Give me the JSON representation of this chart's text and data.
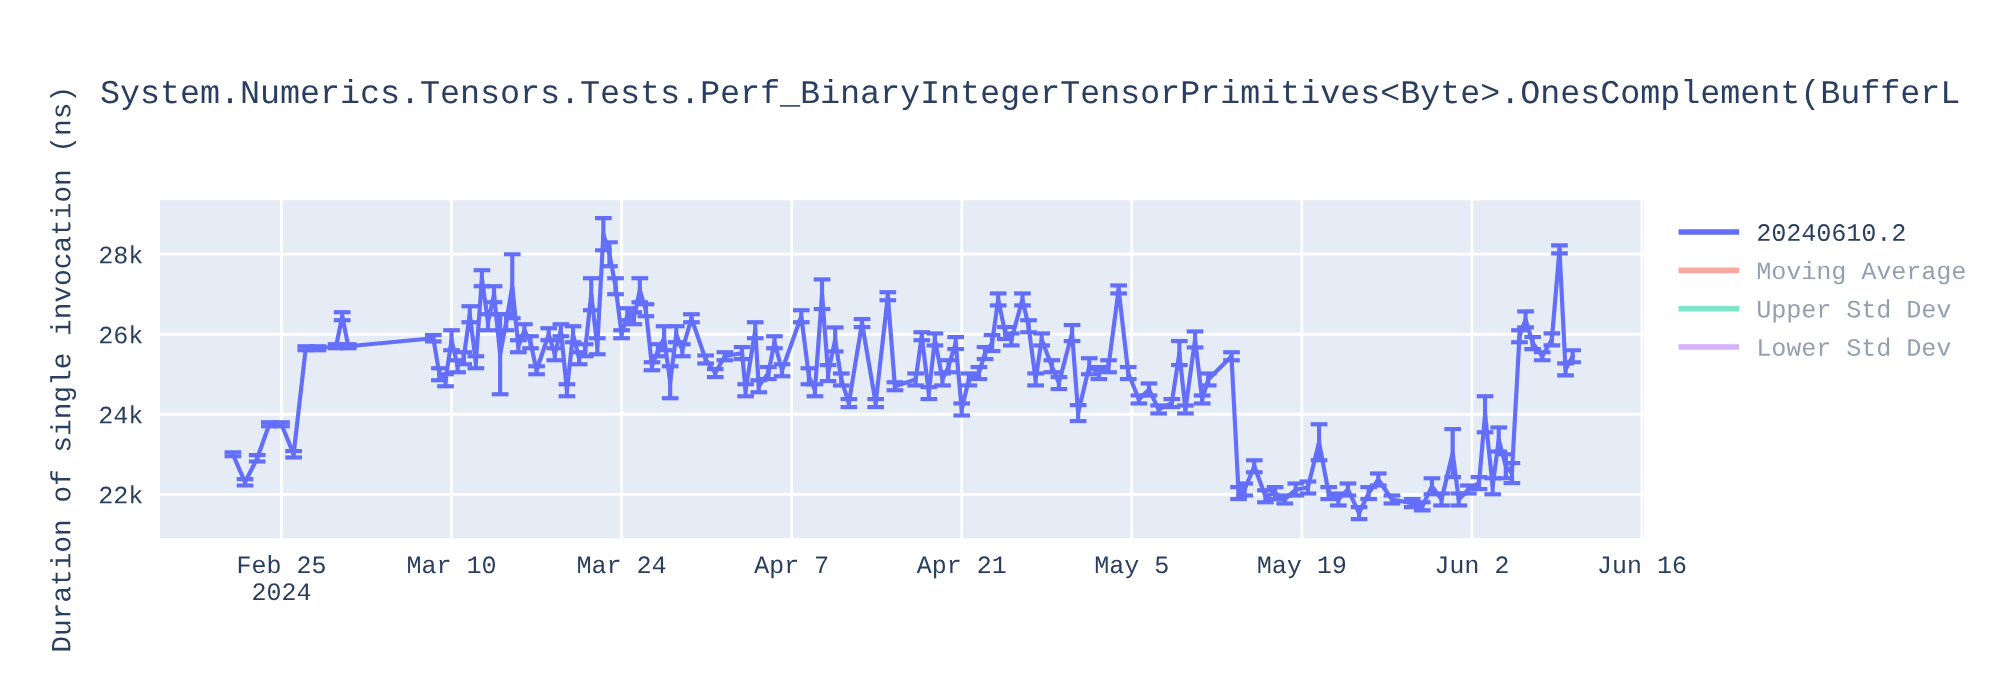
{
  "chart_data": {
    "type": "line",
    "title": "System.Numerics.Tensors.Tests.Perf_BinaryIntegerTensorPrimitives<Byte>.OnesComplement(BufferL",
    "ylabel": "Duration of single invocation (ns)",
    "x": [
      "2024-02-21",
      "2024-02-22",
      "2024-02-23",
      "2024-02-24",
      "2024-02-25",
      "2024-02-26",
      "2024-02-27",
      "2024-02-28",
      "2024-02-29T12:00",
      "2024-03-01",
      "2024-03-01T12:00",
      "2024-03-08T12:00",
      "2024-03-09",
      "2024-03-09T12:00",
      "2024-03-10",
      "2024-03-10T12:00",
      "2024-03-11",
      "2024-03-11T12:00",
      "2024-03-12",
      "2024-03-12T12:00",
      "2024-03-13",
      "2024-03-13T12:00",
      "2024-03-14",
      "2024-03-14T12:00",
      "2024-03-15",
      "2024-03-15T12:00",
      "2024-03-16",
      "2024-03-16T12:00",
      "2024-03-17",
      "2024-03-18",
      "2024-03-18T12:00",
      "2024-03-19",
      "2024-03-19T12:00",
      "2024-03-20",
      "2024-03-20T12:00",
      "2024-03-21",
      "2024-03-21T12:00",
      "2024-03-22",
      "2024-03-22T12:00",
      "2024-03-23",
      "2024-03-23T12:00",
      "2024-03-24",
      "2024-03-24T12:00",
      "2024-03-25",
      "2024-03-25T12:00",
      "2024-03-26",
      "2024-03-26T12:00",
      "2024-03-27",
      "2024-03-27T12:00",
      "2024-03-28",
      "2024-03-28T12:00",
      "2024-03-29",
      "2024-03-29T18:00",
      "2024-03-30T22:00",
      "2024-03-31T17:00",
      "2024-04-01T12:00",
      "2024-04-02T22:00",
      "2024-04-03T05:00",
      "2024-04-04",
      "2024-04-04T07:00",
      "2024-04-05T02:00",
      "2024-04-05T14:00",
      "2024-04-06T05:00",
      "2024-04-07T19:00",
      "2024-04-08T10:00",
      "2024-04-08T22:00",
      "2024-04-09T12:00",
      "2024-04-10",
      "2024-04-10T14:00",
      "2024-04-11T02:00",
      "2024-04-11T17:00",
      "2024-04-12T19:00",
      "2024-04-13T22:00",
      "2024-04-14T22:00",
      "2024-04-15T12:00",
      "2024-04-17T05:00",
      "2024-04-17T17:00",
      "2024-04-18T07:00",
      "2024-04-18T19:00",
      "2024-04-19T10:00",
      "2024-04-19T22:00",
      "2024-04-20T12:00",
      "2024-04-21",
      "2024-04-21T14:00",
      "2024-04-22T10:00",
      "2024-04-22T22:00",
      "2024-04-23T12:00",
      "2024-04-24",
      "2024-04-24T14:00",
      "2024-04-25T02:00",
      "2024-04-26",
      "2024-04-26T12:00",
      "2024-04-27T02:00",
      "2024-04-27T14:00",
      "2024-04-28T10:00",
      "2024-04-29",
      "2024-04-30T02:00",
      "2024-04-30T14:00",
      "2024-05-01T12:00",
      "2024-05-02T07:00",
      "2024-05-03T02:00",
      "2024-05-03T22:00",
      "2024-05-04T17:00",
      "2024-05-05T14:00",
      "2024-05-06T10:00",
      "2024-05-07T05:00",
      "2024-05-08T07:00",
      "2024-05-08T22:00",
      "2024-05-09T10:00",
      "2024-05-10T05:00",
      "2024-05-10T19:00",
      "2024-05-11T07:00",
      "2024-05-13T05:00",
      "2024-05-13T19:00",
      "2024-05-14T07:00",
      "2024-05-15T02:00",
      "2024-05-16",
      "2024-05-16T19:00",
      "2024-05-17T14:00",
      "2024-05-18T12:00",
      "2024-05-19T12:00",
      "2024-05-20T10:00",
      "2024-05-21T05:00",
      "2024-05-22",
      "2024-05-22T19:00",
      "2024-05-23T17:00",
      "2024-05-24T12:00",
      "2024-05-25T07:00",
      "2024-05-26T10:00",
      "2024-05-28T02:00",
      "2024-05-28T22:00",
      "2024-05-29T17:00",
      "2024-05-30T12:00",
      "2024-05-31T10:00",
      "2024-05-31T22:00",
      "2024-06-01T17:00",
      "2024-06-02T14:00",
      "2024-06-03T02:00",
      "2024-06-03T17:00",
      "2024-06-04T05:00",
      "2024-06-04T19:00",
      "2024-06-05T07:00",
      "2024-06-05T22:00",
      "2024-06-06T10:00",
      "2024-06-07",
      "2024-06-07T19:00",
      "2024-06-08T14:00",
      "2024-06-09T05:00",
      "2024-06-09T17:00",
      "2024-06-10T07:00"
    ],
    "series": [
      {
        "name": "20240610.2",
        "color": "#636efa",
        "values": [
          23000,
          22300,
          22900,
          23750,
          23750,
          23000,
          25650,
          25650,
          25700,
          26450,
          25700,
          25900,
          25000,
          24850,
          25850,
          25200,
          25400,
          26500,
          25300,
          27400,
          26300,
          27000,
          25500,
          26300,
          27200,
          25700,
          26100,
          25800,
          25100,
          26000,
          25500,
          26100,
          24600,
          26000,
          25400,
          25600,
          27000,
          25700,
          28500,
          28000,
          27200,
          26000,
          26500,
          26400,
          27100,
          26600,
          25200,
          25600,
          25900,
          24800,
          26000,
          25600,
          26400,
          25370,
          25030,
          25450,
          25530,
          24600,
          26100,
          24700,
          25030,
          25800,
          25100,
          26450,
          24950,
          24600,
          27000,
          25030,
          25870,
          24870,
          24280,
          26280,
          24280,
          26950,
          24700,
          24870,
          25950,
          24530,
          25870,
          24870,
          25200,
          25780,
          24120,
          24870,
          25030,
          25530,
          25780,
          26870,
          26030,
          25870,
          26870,
          26200,
          24870,
          25870,
          25200,
          24780,
          26030,
          24030,
          25200,
          25030,
          25200,
          27120,
          25030,
          24370,
          24620,
          24120,
          24280,
          25530,
          24120,
          25870,
          24370,
          24870,
          25450,
          22030,
          22120,
          22700,
          21950,
          22030,
          21870,
          22120,
          22170,
          23300,
          22030,
          21870,
          22120,
          21530,
          22030,
          22370,
          21870,
          21780,
          21700,
          22200,
          21870,
          23030,
          21870,
          22120,
          22280,
          24000,
          22200,
          23370,
          22700,
          22530,
          25950,
          26370,
          25780,
          25450,
          25870,
          28120,
          25120,
          25450
        ],
        "errors": [
          50,
          80,
          80,
          50,
          50,
          80,
          50,
          50,
          50,
          100,
          50,
          80,
          150,
          150,
          250,
          150,
          150,
          200,
          150,
          200,
          200,
          200,
          1000,
          200,
          800,
          150,
          150,
          150,
          100,
          150,
          150,
          150,
          150,
          200,
          150,
          150,
          400,
          200,
          400,
          300,
          200,
          100,
          150,
          150,
          300,
          150,
          100,
          150,
          300,
          400,
          200,
          150,
          100,
          100,
          100,
          100,
          150,
          150,
          200,
          150,
          150,
          150,
          150,
          150,
          200,
          150,
          370,
          200,
          300,
          150,
          100,
          100,
          100,
          100,
          100,
          150,
          100,
          150,
          150,
          150,
          150,
          150,
          150,
          150,
          150,
          150,
          200,
          150,
          150,
          150,
          150,
          150,
          150,
          150,
          150,
          150,
          200,
          200,
          200,
          150,
          150,
          100,
          150,
          100,
          150,
          100,
          100,
          300,
          100,
          200,
          100,
          150,
          100,
          150,
          150,
          150,
          150,
          150,
          100,
          150,
          150,
          450,
          150,
          150,
          150,
          150,
          150,
          150,
          100,
          100,
          100,
          200,
          150,
          600,
          150,
          100,
          150,
          450,
          200,
          300,
          300,
          250,
          150,
          200,
          150,
          100,
          150,
          100,
          150,
          150
        ]
      },
      {
        "name": "Moving Average",
        "color": "#ef553b",
        "values": [
          null,
          null,
          null,
          null,
          null,
          null,
          null,
          null,
          null,
          null,
          null,
          null,
          null,
          null,
          null,
          null,
          null,
          null,
          null,
          null,
          null,
          null,
          null,
          null,
          null,
          null,
          null,
          null,
          null,
          null,
          null,
          null,
          null,
          null,
          null,
          null,
          null,
          null,
          null,
          null,
          null,
          null,
          null,
          null,
          null,
          null,
          null,
          null,
          null,
          null,
          null,
          null,
          null,
          null,
          null,
          null,
          null,
          null,
          null,
          null,
          null,
          null,
          null,
          null,
          null,
          null,
          null,
          null,
          null,
          null,
          null,
          null,
          null,
          null,
          null,
          null,
          null,
          null,
          null,
          null,
          null,
          null,
          null,
          null,
          null,
          null,
          null,
          null,
          null,
          null,
          null,
          null,
          null,
          null,
          null,
          null,
          null,
          null,
          null,
          null,
          null,
          null,
          null,
          null,
          null,
          null,
          null,
          null,
          null,
          null,
          null,
          null,
          null,
          null,
          null,
          null,
          null,
          null,
          null,
          null,
          null,
          null,
          null,
          null,
          null,
          null,
          null,
          null,
          null,
          null,
          null,
          null,
          null,
          null,
          null,
          null,
          null,
          null,
          null,
          null,
          null,
          null,
          null,
          null,
          null,
          null,
          null,
          null,
          null,
          null
        ]
      },
      {
        "name": "Upper Std Dev",
        "color": "#00cc96",
        "values": [
          null,
          null,
          null,
          null,
          null,
          null,
          null,
          null,
          null,
          null,
          null,
          null,
          null,
          null,
          null,
          null,
          null,
          null,
          null,
          null,
          null,
          null,
          null,
          null,
          null,
          null,
          null,
          null,
          null,
          null,
          null,
          null,
          null,
          null,
          null,
          null,
          null,
          null,
          null,
          null,
          null,
          null,
          null,
          null,
          null,
          null,
          null,
          null,
          null,
          null,
          null,
          null,
          null,
          null,
          null,
          null,
          null,
          null,
          null,
          null,
          null,
          null,
          null,
          null,
          null,
          null,
          null,
          null,
          null,
          null,
          null,
          null,
          null,
          null,
          null,
          null,
          null,
          null,
          null,
          null,
          null,
          null,
          null,
          null,
          null,
          null,
          null,
          null,
          null,
          null,
          null,
          null,
          null,
          null,
          null,
          null,
          null,
          null,
          null,
          null,
          null,
          null,
          null,
          null,
          null,
          null,
          null,
          null,
          null,
          null,
          null,
          null,
          null,
          null,
          null,
          null,
          null,
          null,
          null,
          null,
          null,
          null,
          null,
          null,
          null,
          null,
          null,
          null,
          null,
          null,
          null,
          null,
          null,
          null,
          null,
          null,
          null,
          null,
          null,
          null,
          null,
          null,
          null,
          null,
          null,
          null,
          null,
          null,
          null,
          null
        ]
      },
      {
        "name": "Lower Std Dev",
        "color": "#ab63fa",
        "values": [
          null,
          null,
          null,
          null,
          null,
          null,
          null,
          null,
          null,
          null,
          null,
          null,
          null,
          null,
          null,
          null,
          null,
          null,
          null,
          null,
          null,
          null,
          null,
          null,
          null,
          null,
          null,
          null,
          null,
          null,
          null,
          null,
          null,
          null,
          null,
          null,
          null,
          null,
          null,
          null,
          null,
          null,
          null,
          null,
          null,
          null,
          null,
          null,
          null,
          null,
          null,
          null,
          null,
          null,
          null,
          null,
          null,
          null,
          null,
          null,
          null,
          null,
          null,
          null,
          null,
          null,
          null,
          null,
          null,
          null,
          null,
          null,
          null,
          null,
          null,
          null,
          null,
          null,
          null,
          null,
          null,
          null,
          null,
          null,
          null,
          null,
          null,
          null,
          null,
          null,
          null,
          null,
          null,
          null,
          null,
          null,
          null,
          null,
          null,
          null,
          null,
          null,
          null,
          null,
          null,
          null,
          null,
          null,
          null,
          null,
          null,
          null,
          null,
          null,
          null,
          null,
          null,
          null,
          null,
          null,
          null,
          null,
          null,
          null,
          null,
          null,
          null,
          null,
          null,
          null,
          null,
          null,
          null,
          null,
          null,
          null,
          null,
          null,
          null,
          null,
          null,
          null,
          null,
          null,
          null,
          null,
          null,
          null,
          null,
          null
        ]
      }
    ],
    "xlim": [
      "2024-02-15",
      "2024-06-16T04:00"
    ],
    "xticks": [
      {
        "value": "2024-02-25",
        "label": "Feb 25\n2024"
      },
      {
        "value": "2024-03-10",
        "label": "Mar 10"
      },
      {
        "value": "2024-03-24",
        "label": "Mar 24"
      },
      {
        "value": "2024-04-07",
        "label": "Apr 7"
      },
      {
        "value": "2024-04-21",
        "label": "Apr 21"
      },
      {
        "value": "2024-05-05",
        "label": "May 5"
      },
      {
        "value": "2024-05-19",
        "label": "May 19"
      },
      {
        "value": "2024-06-02",
        "label": "Jun 2"
      },
      {
        "value": "2024-06-16",
        "label": "Jun 16"
      }
    ],
    "ylim": [
      20900,
      29350
    ],
    "yticks": [
      {
        "value": 22000,
        "label": "22k"
      },
      {
        "value": 24000,
        "label": "24k"
      },
      {
        "value": 26000,
        "label": "26k"
      },
      {
        "value": 28000,
        "label": "28k"
      }
    ],
    "grid": true,
    "legend": "right",
    "marker": "none",
    "line_style": "solid"
  }
}
